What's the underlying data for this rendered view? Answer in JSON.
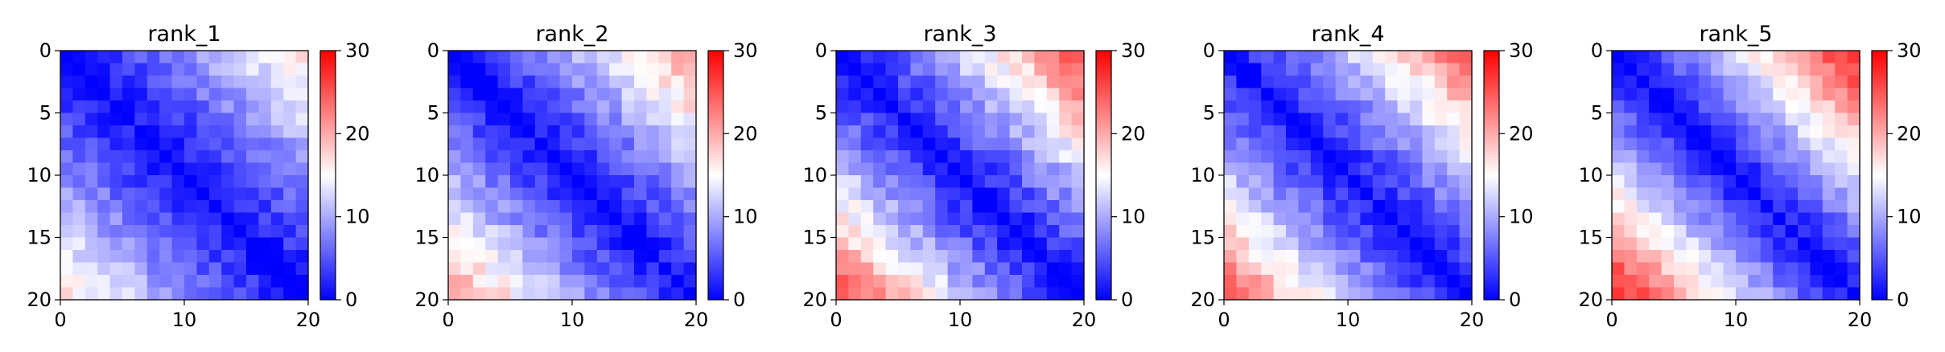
{
  "figure": {
    "background": "#ffffff"
  },
  "colormap": {
    "name": "bwr",
    "low": "#0000ff",
    "mid": "#ffffff",
    "high": "#ff0000"
  },
  "chart_data": [
    {
      "type": "heatmap",
      "title": "rank_1",
      "xticks": [
        "0",
        "10",
        "20"
      ],
      "yticks": [
        "0",
        "5",
        "10",
        "15",
        "20"
      ],
      "xlim": [
        0,
        20
      ],
      "ylim": [
        20,
        0
      ],
      "colorbar": {
        "vmin": 0,
        "vmax": 30,
        "ticks": [
          "0",
          "10",
          "20",
          "30"
        ]
      },
      "grid_size": 20,
      "description_params": {
        "near": 1,
        "far": 17,
        "noise": 2.0,
        "seed": 11
      }
    },
    {
      "type": "heatmap",
      "title": "rank_2",
      "xticks": [
        "0",
        "10",
        "20"
      ],
      "yticks": [
        "0",
        "5",
        "10",
        "15",
        "20"
      ],
      "xlim": [
        0,
        20
      ],
      "ylim": [
        20,
        0
      ],
      "colorbar": {
        "vmin": 0,
        "vmax": 30,
        "ticks": [
          "0",
          "10",
          "20",
          "30"
        ]
      },
      "grid_size": 20,
      "description_params": {
        "near": 1,
        "far": 21,
        "noise": 2.0,
        "seed": 23
      }
    },
    {
      "type": "heatmap",
      "title": "rank_3",
      "xticks": [
        "0",
        "10",
        "20"
      ],
      "yticks": [
        "0",
        "5",
        "10",
        "15",
        "20"
      ],
      "xlim": [
        0,
        20
      ],
      "ylim": [
        20,
        0
      ],
      "colorbar": {
        "vmin": 0,
        "vmax": 30,
        "ticks": [
          "0",
          "10",
          "20",
          "30"
        ]
      },
      "grid_size": 20,
      "description_params": {
        "near": 1,
        "far": 25,
        "noise": 2.2,
        "seed": 37
      }
    },
    {
      "type": "heatmap",
      "title": "rank_4",
      "xticks": [
        "0",
        "10",
        "20"
      ],
      "yticks": [
        "0",
        "5",
        "10",
        "15",
        "20"
      ],
      "xlim": [
        0,
        20
      ],
      "ylim": [
        20,
        0
      ],
      "colorbar": {
        "vmin": 0,
        "vmax": 30,
        "ticks": [
          "0",
          "10",
          "20",
          "30"
        ]
      },
      "grid_size": 20,
      "description_params": {
        "near": 1,
        "far": 24,
        "noise": 2.0,
        "seed": 41
      }
    },
    {
      "type": "heatmap",
      "title": "rank_5",
      "xticks": [
        "0",
        "10",
        "20"
      ],
      "yticks": [
        "0",
        "5",
        "10",
        "15",
        "20"
      ],
      "xlim": [
        0,
        20
      ],
      "ylim": [
        20,
        0
      ],
      "colorbar": {
        "vmin": 0,
        "vmax": 30,
        "ticks": [
          "0",
          "10",
          "20",
          "30"
        ]
      },
      "grid_size": 20,
      "description_params": {
        "near": 1,
        "far": 28,
        "noise": 1.8,
        "seed": 53
      }
    }
  ]
}
